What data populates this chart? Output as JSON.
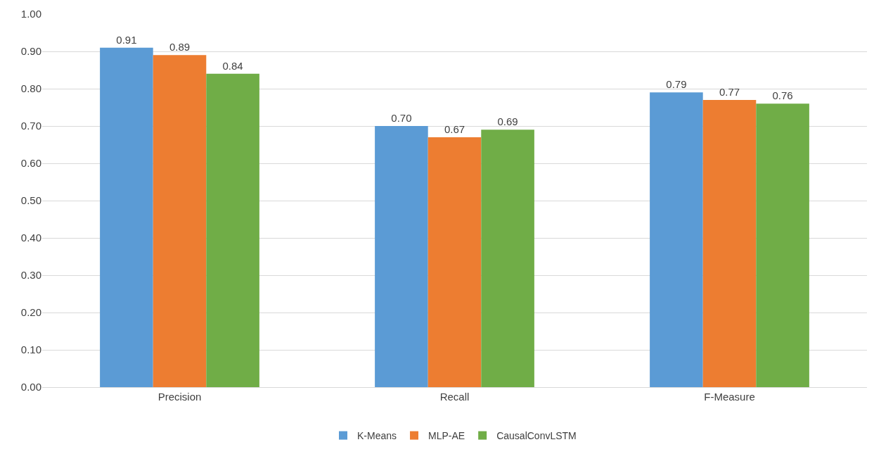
{
  "chart_data": {
    "type": "bar",
    "categories": [
      "Precision",
      "Recall",
      "F-Measure"
    ],
    "series": [
      {
        "name": "K-Means",
        "color": "#5b9bd5",
        "values": [
          0.91,
          0.7,
          0.79
        ],
        "value_labels": [
          "0.91",
          "0.70",
          "0.79"
        ]
      },
      {
        "name": "MLP-AE",
        "color": "#ed7d31",
        "values": [
          0.89,
          0.67,
          0.77
        ],
        "value_labels": [
          "0.89",
          "0.67",
          "0.77"
        ]
      },
      {
        "name": "CausalConvLSTM",
        "color": "#70ad47",
        "values": [
          0.84,
          0.69,
          0.76
        ],
        "value_labels": [
          "0.84",
          "0.69",
          "0.76"
        ]
      }
    ],
    "ylim": [
      0,
      1
    ],
    "yticks": [
      {
        "value": 0,
        "label": "0.00"
      },
      {
        "value": 0.1,
        "label": "0.10"
      },
      {
        "value": 0.2,
        "label": "0.20"
      },
      {
        "value": 0.3,
        "label": "0.30"
      },
      {
        "value": 0.4,
        "label": "0.40"
      },
      {
        "value": 0.5,
        "label": "0.50"
      },
      {
        "value": 0.6,
        "label": "0.60"
      },
      {
        "value": 0.7,
        "label": "0.70"
      },
      {
        "value": 0.8,
        "label": "0.80"
      },
      {
        "value": 0.9,
        "label": "0.90"
      },
      {
        "value": 1,
        "label": "1.00"
      }
    ],
    "grid": "y",
    "legend": "bottom"
  }
}
